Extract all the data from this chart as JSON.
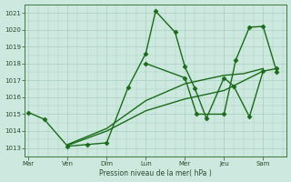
{
  "title": "",
  "xlabel": "Pression niveau de la mer( hPa )",
  "background_color": "#cce8df",
  "line_color": "#1a6b1a",
  "grid_color": "#aacfbf",
  "ylim": [
    1012.5,
    1021.5
  ],
  "yticks": [
    1013,
    1014,
    1015,
    1016,
    1017,
    1018,
    1019,
    1020,
    1021
  ],
  "xlabels": [
    "Mar",
    "Ven",
    "Dim",
    "Lun",
    "Mer",
    "Jeu",
    "Sam"
  ],
  "xtick_positions": [
    0,
    1,
    2,
    3,
    4,
    5,
    6
  ],
  "xlim": [
    -0.1,
    6.6
  ],
  "series": [
    {
      "x": [
        0.0,
        0.4,
        1.0,
        1.5,
        2.0,
        2.55,
        3.0,
        3.25,
        3.75,
        4.0,
        4.25,
        4.55,
        5.0,
        5.25,
        5.65,
        6.0,
        6.35
      ],
      "y": [
        1015.1,
        1014.7,
        1013.1,
        1013.2,
        1013.3,
        1016.6,
        1018.6,
        1021.1,
        1019.85,
        1017.8,
        1016.55,
        1014.75,
        1017.15,
        1016.65,
        1014.85,
        1017.55,
        1017.7
      ],
      "marker": "D",
      "markersize": 2.5,
      "lw": 1.0
    },
    {
      "x": [
        1.0,
        2.0,
        3.0,
        4.0,
        5.0,
        5.5,
        6.0
      ],
      "y": [
        1013.2,
        1014.15,
        1015.8,
        1016.8,
        1017.3,
        1017.4,
        1017.7
      ],
      "marker": null,
      "markersize": 0,
      "lw": 1.0
    },
    {
      "x": [
        1.0,
        2.0,
        3.0,
        4.0,
        5.0,
        6.0
      ],
      "y": [
        1013.15,
        1014.0,
        1015.2,
        1015.9,
        1016.4,
        1017.55
      ],
      "marker": null,
      "markersize": 0,
      "lw": 1.0
    },
    {
      "x": [
        3.0,
        4.0,
        4.3,
        5.0,
        5.3,
        5.65,
        6.0,
        6.35
      ],
      "y": [
        1018.0,
        1017.15,
        1015.0,
        1015.0,
        1018.2,
        1020.15,
        1020.2,
        1017.5
      ],
      "marker": "D",
      "markersize": 2.5,
      "lw": 1.0
    }
  ]
}
